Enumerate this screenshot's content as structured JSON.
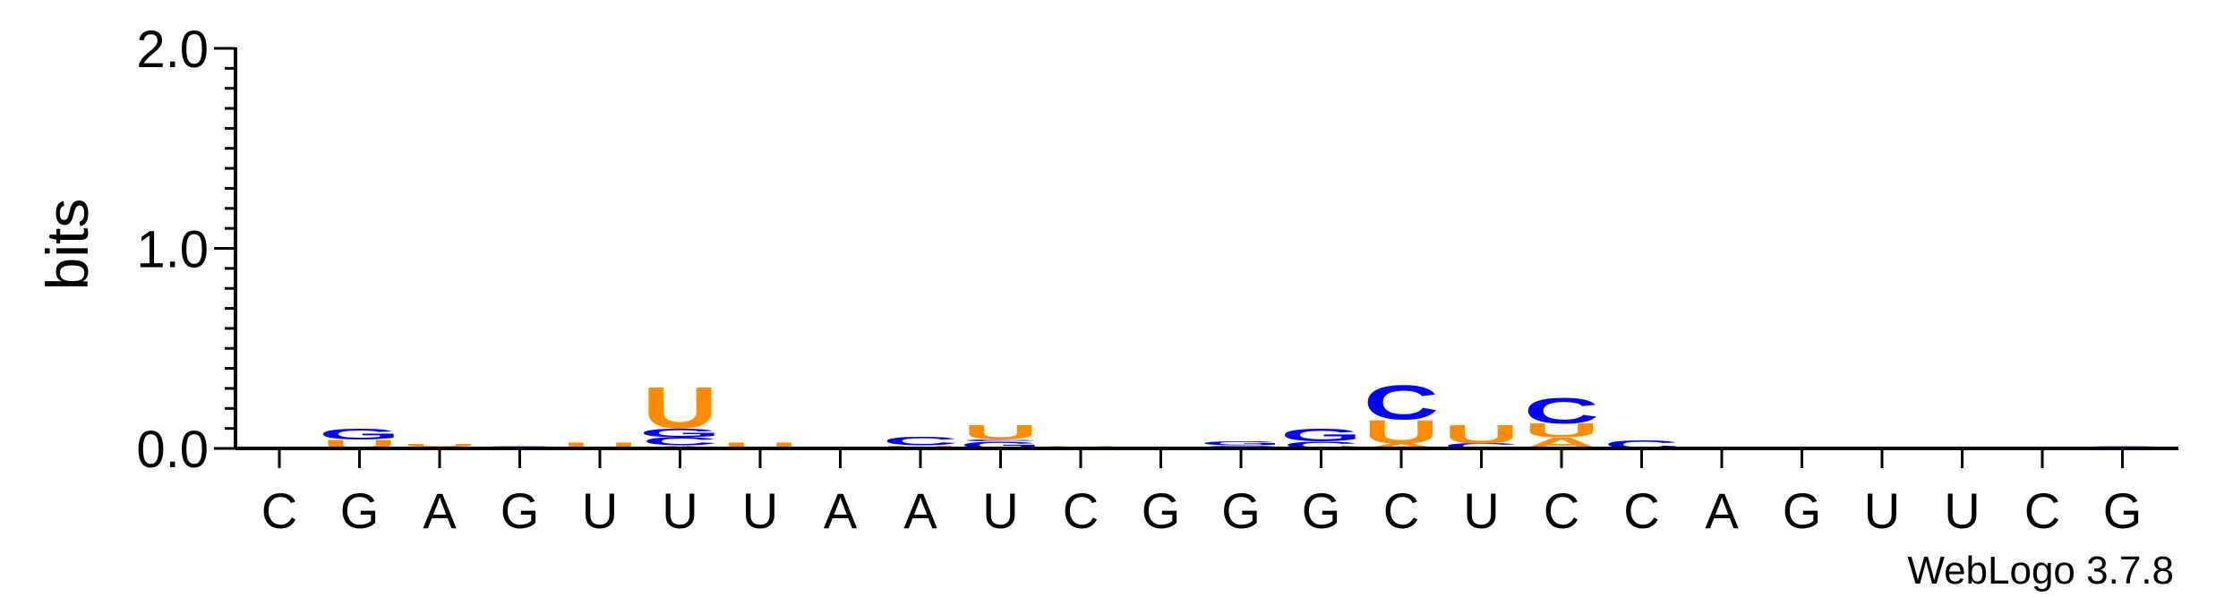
{
  "chart_data": {
    "type": "sequence-logo",
    "ylabel": "bits",
    "ylim": [
      0,
      2.0
    ],
    "yticks": [
      "0.0",
      "1.0",
      "2.0"
    ],
    "ymajor": [
      0,
      1.0,
      2.0
    ],
    "yminor_step": 0.1,
    "colors": {
      "A": "#ff8c00",
      "U": "#ff8c00",
      "C": "#0000ff",
      "G": "#0000ff"
    },
    "positions": [
      {
        "label": "C",
        "stack": []
      },
      {
        "label": "G",
        "stack": [
          [
            "U",
            0.045
          ],
          [
            "G",
            0.055
          ]
        ]
      },
      {
        "label": "A",
        "stack": [
          [
            "G",
            0.01
          ],
          [
            "U",
            0.015
          ]
        ]
      },
      {
        "label": "G",
        "stack": [
          [
            "G",
            0.012
          ]
        ]
      },
      {
        "label": "U",
        "stack": [
          [
            "U",
            0.03
          ]
        ]
      },
      {
        "label": "U",
        "stack": [
          [
            "A",
            0.015
          ],
          [
            "C",
            0.04
          ],
          [
            "G",
            0.045
          ],
          [
            "U",
            0.21
          ]
        ]
      },
      {
        "label": "U",
        "stack": [
          [
            "U",
            0.03
          ]
        ]
      },
      {
        "label": "A",
        "stack": []
      },
      {
        "label": "A",
        "stack": [
          [
            "U",
            0.015
          ],
          [
            "C",
            0.045
          ]
        ]
      },
      {
        "label": "U",
        "stack": [
          [
            "G",
            0.035
          ],
          [
            "C",
            0.01
          ],
          [
            "U",
            0.075
          ]
        ]
      },
      {
        "label": "C",
        "stack": [
          [
            "U",
            0.012
          ]
        ]
      },
      {
        "label": "G",
        "stack": [
          [
            "U",
            0.008
          ]
        ]
      },
      {
        "label": "G",
        "stack": [
          [
            "C",
            0.015
          ],
          [
            "G",
            0.02
          ]
        ]
      },
      {
        "label": "G",
        "stack": [
          [
            "C",
            0.035
          ],
          [
            "G",
            0.065
          ]
        ]
      },
      {
        "label": "C",
        "stack": [
          [
            "A",
            0.025
          ],
          [
            "U",
            0.12
          ],
          [
            "C",
            0.175
          ]
        ]
      },
      {
        "label": "U",
        "stack": [
          [
            "C",
            0.025
          ],
          [
            "U",
            0.095
          ]
        ]
      },
      {
        "label": "C",
        "stack": [
          [
            "A",
            0.055
          ],
          [
            "U",
            0.07
          ],
          [
            "C",
            0.13
          ]
        ]
      },
      {
        "label": "C",
        "stack": [
          [
            "C",
            0.04
          ]
        ]
      },
      {
        "label": "A",
        "stack": []
      },
      {
        "label": "G",
        "stack": [
          [
            "G",
            0.005
          ]
        ]
      },
      {
        "label": "U",
        "stack": [
          [
            "G",
            0.005
          ]
        ]
      },
      {
        "label": "U",
        "stack": []
      },
      {
        "label": "C",
        "stack": []
      },
      {
        "label": "G",
        "stack": [
          [
            "G",
            0.012
          ]
        ]
      }
    ]
  },
  "footer": {
    "credit": "WebLogo 3.7.8"
  }
}
